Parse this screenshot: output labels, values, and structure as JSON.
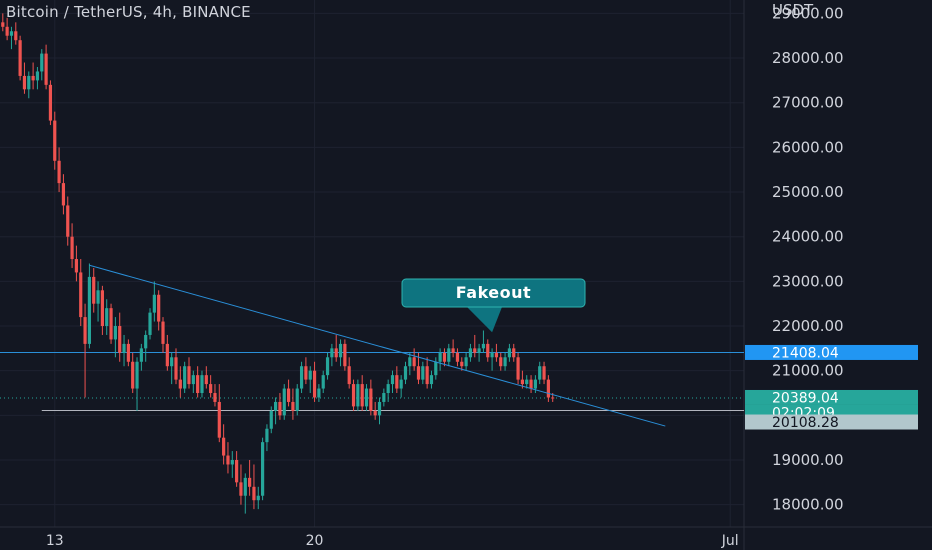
{
  "header": {
    "title": "Bitcoin / TetherUS, 4h, BINANCE"
  },
  "colors": {
    "background": "#131722",
    "up": "#26a69a",
    "down": "#ef5350",
    "grid": "#1e2230",
    "line": "#2a8fd8",
    "callout": "#0e7480"
  },
  "chart_data": {
    "type": "candlestick",
    "currency_label": "USDT",
    "ylim": [
      17500,
      29300
    ],
    "yticks": [
      18000,
      19000,
      20000,
      21000,
      22000,
      23000,
      24000,
      25000,
      26000,
      27000,
      28000,
      29000
    ],
    "ytick_labels": [
      "18000.00",
      "19000.00",
      "20000.00",
      "21000.00",
      "22000.00",
      "23000.00",
      "24000.00",
      "25000.00",
      "26000.00",
      "27000.00",
      "28000.00",
      "29000.00"
    ],
    "xticks": [
      {
        "label": "13",
        "index": 12
      },
      {
        "label": "20",
        "index": 72
      },
      {
        "label": "Jul",
        "index": 168
      }
    ],
    "candles": [
      [
        28800,
        29000,
        28600,
        28700
      ],
      [
        28700,
        28900,
        28400,
        28500
      ],
      [
        28500,
        28700,
        28200,
        28600
      ],
      [
        28600,
        28800,
        28300,
        28400
      ],
      [
        28400,
        28500,
        27500,
        27600
      ],
      [
        27600,
        27900,
        27200,
        27300
      ],
      [
        27300,
        27700,
        27100,
        27600
      ],
      [
        27600,
        27900,
        27300,
        27500
      ],
      [
        27500,
        27800,
        27300,
        27700
      ],
      [
        27700,
        28200,
        27500,
        28100
      ],
      [
        28100,
        28300,
        27300,
        27400
      ],
      [
        27400,
        27500,
        26500,
        26600
      ],
      [
        26600,
        26800,
        25500,
        25700
      ],
      [
        25700,
        26000,
        25000,
        25200
      ],
      [
        25200,
        25400,
        24500,
        24700
      ],
      [
        24700,
        24900,
        23800,
        24000
      ],
      [
        24000,
        24300,
        23300,
        23500
      ],
      [
        23500,
        23800,
        23000,
        23200
      ],
      [
        23200,
        23500,
        22000,
        22200
      ],
      [
        22200,
        22500,
        20400,
        21600
      ],
      [
        21600,
        23400,
        21500,
        23100
      ],
      [
        23100,
        23300,
        22300,
        22500
      ],
      [
        22500,
        23000,
        22100,
        22800
      ],
      [
        22800,
        22900,
        21800,
        22000
      ],
      [
        22000,
        22600,
        21800,
        22400
      ],
      [
        22400,
        22500,
        21600,
        21700
      ],
      [
        21700,
        22200,
        21300,
        22000
      ],
      [
        22000,
        22300,
        21200,
        21400
      ],
      [
        21400,
        21800,
        21100,
        21600
      ],
      [
        21600,
        21700,
        21100,
        21200
      ],
      [
        21200,
        21400,
        20500,
        20600
      ],
      [
        20600,
        21300,
        20100,
        21200
      ],
      [
        21200,
        21600,
        21000,
        21500
      ],
      [
        21500,
        21900,
        21200,
        21800
      ],
      [
        21800,
        22400,
        21700,
        22300
      ],
      [
        22300,
        23000,
        22100,
        22700
      ],
      [
        22700,
        22800,
        21900,
        22100
      ],
      [
        22100,
        22200,
        21400,
        21600
      ],
      [
        21600,
        21800,
        21000,
        21100
      ],
      [
        21100,
        21400,
        20700,
        21300
      ],
      [
        21300,
        21500,
        20700,
        20800
      ],
      [
        20800,
        21100,
        20400,
        20600
      ],
      [
        20600,
        21200,
        20500,
        21100
      ],
      [
        21100,
        21300,
        20600,
        20700
      ],
      [
        20700,
        21000,
        20500,
        20900
      ],
      [
        20900,
        21100,
        20400,
        20500
      ],
      [
        20500,
        21000,
        20400,
        20900
      ],
      [
        20900,
        21100,
        20600,
        20700
      ],
      [
        20700,
        20900,
        20400,
        20500
      ],
      [
        20500,
        20700,
        20200,
        20300
      ],
      [
        20300,
        20700,
        19400,
        19500
      ],
      [
        19500,
        19800,
        18900,
        19100
      ],
      [
        19100,
        19400,
        18700,
        18900
      ],
      [
        18900,
        19200,
        18600,
        19000
      ],
      [
        19000,
        19200,
        18400,
        18500
      ],
      [
        18500,
        18900,
        18000,
        18200
      ],
      [
        18200,
        18700,
        17800,
        18600
      ],
      [
        18600,
        19000,
        18200,
        18400
      ],
      [
        18400,
        18900,
        17900,
        18100
      ],
      [
        18100,
        18400,
        17900,
        18200
      ],
      [
        18200,
        19500,
        18100,
        19400
      ],
      [
        19400,
        19800,
        19200,
        19700
      ],
      [
        19700,
        20200,
        19600,
        20100
      ],
      [
        20100,
        20400,
        19800,
        20300
      ],
      [
        20300,
        20500,
        19900,
        20000
      ],
      [
        20000,
        20700,
        19900,
        20600
      ],
      [
        20600,
        20800,
        20200,
        20300
      ],
      [
        20300,
        20600,
        19900,
        20100
      ],
      [
        20100,
        20700,
        20000,
        20600
      ],
      [
        20600,
        21200,
        20500,
        21100
      ],
      [
        21100,
        21300,
        20700,
        20800
      ],
      [
        20800,
        21100,
        20500,
        21000
      ],
      [
        21000,
        21200,
        20300,
        20400
      ],
      [
        20400,
        20700,
        20300,
        20600
      ],
      [
        20600,
        21000,
        20500,
        20900
      ],
      [
        20900,
        21400,
        20800,
        21300
      ],
      [
        21300,
        21600,
        21100,
        21500
      ],
      [
        21500,
        21800,
        21200,
        21300
      ],
      [
        21300,
        21700,
        21100,
        21600
      ],
      [
        21600,
        21700,
        21000,
        21100
      ],
      [
        21100,
        21300,
        20600,
        20700
      ],
      [
        20700,
        20800,
        20100,
        20200
      ],
      [
        20200,
        20800,
        20100,
        20700
      ],
      [
        20700,
        20900,
        20100,
        20200
      ],
      [
        20200,
        20700,
        20100,
        20600
      ],
      [
        20600,
        20800,
        20000,
        20100
      ],
      [
        20100,
        20300,
        19900,
        20000
      ],
      [
        20000,
        20400,
        19800,
        20300
      ],
      [
        20300,
        20600,
        20200,
        20500
      ],
      [
        20500,
        20800,
        20300,
        20700
      ],
      [
        20700,
        21000,
        20500,
        20900
      ],
      [
        20900,
        21100,
        20500,
        20600
      ],
      [
        20600,
        20900,
        20400,
        20800
      ],
      [
        20800,
        21200,
        20700,
        21100
      ],
      [
        21100,
        21400,
        20900,
        21300
      ],
      [
        21300,
        21500,
        21000,
        21100
      ],
      [
        21100,
        21400,
        20700,
        20800
      ],
      [
        20800,
        21200,
        20700,
        21100
      ],
      [
        21100,
        21300,
        20600,
        20700
      ],
      [
        20700,
        21000,
        20600,
        20900
      ],
      [
        20900,
        21300,
        20800,
        21200
      ],
      [
        21200,
        21500,
        21000,
        21400
      ],
      [
        21400,
        21500,
        21100,
        21200
      ],
      [
        21200,
        21600,
        21100,
        21500
      ],
      [
        21500,
        21700,
        21300,
        21400
      ],
      [
        21400,
        21500,
        21100,
        21200
      ],
      [
        21200,
        21300,
        21000,
        21100
      ],
      [
        21100,
        21400,
        21000,
        21300
      ],
      [
        21300,
        21600,
        21200,
        21500
      ],
      [
        21500,
        21800,
        21300,
        21400
      ],
      [
        21400,
        21600,
        21200,
        21500
      ],
      [
        21500,
        21900,
        21400,
        21600
      ],
      [
        21600,
        21700,
        21200,
        21300
      ],
      [
        21300,
        21500,
        21000,
        21400
      ],
      [
        21400,
        21600,
        21200,
        21300
      ],
      [
        21300,
        21400,
        21000,
        21100
      ],
      [
        21100,
        21400,
        21000,
        21300
      ],
      [
        21300,
        21600,
        21200,
        21500
      ],
      [
        21500,
        21600,
        21200,
        21300
      ],
      [
        21300,
        21400,
        20700,
        20800
      ],
      [
        20800,
        21000,
        20600,
        20700
      ],
      [
        20700,
        20900,
        20600,
        20800
      ],
      [
        20800,
        20900,
        20500,
        20600
      ],
      [
        20600,
        20900,
        20500,
        20800
      ],
      [
        20800,
        21200,
        20700,
        21100
      ],
      [
        21100,
        21200,
        20700,
        20800
      ],
      [
        20800,
        20900,
        20300,
        20400
      ],
      [
        20400,
        20500,
        20300,
        20389
      ]
    ],
    "annotations": {
      "callout": {
        "text": "Fakeout",
        "pointer_index": 113,
        "pointer_price": 21860
      },
      "trendline": {
        "from": {
          "index": 20,
          "price": 23360
        },
        "to": {
          "index": 153,
          "price": 19760
        }
      },
      "upper_horizontal": {
        "price": 21408.04
      },
      "lower_horizontal": {
        "price": 20108.28,
        "from_index": 9
      }
    },
    "price_tags": [
      {
        "label": "21408.04",
        "price": 21408.04,
        "style": "blue"
      },
      {
        "label": "20389.04",
        "price": 20389.04,
        "style": "teal"
      },
      {
        "label": "02:02:09",
        "price": 20389.04,
        "style": "teal-countdown"
      },
      {
        "label": "20108.28",
        "price": 20108.28,
        "style": "light"
      }
    ],
    "last_price": 20389.04
  }
}
